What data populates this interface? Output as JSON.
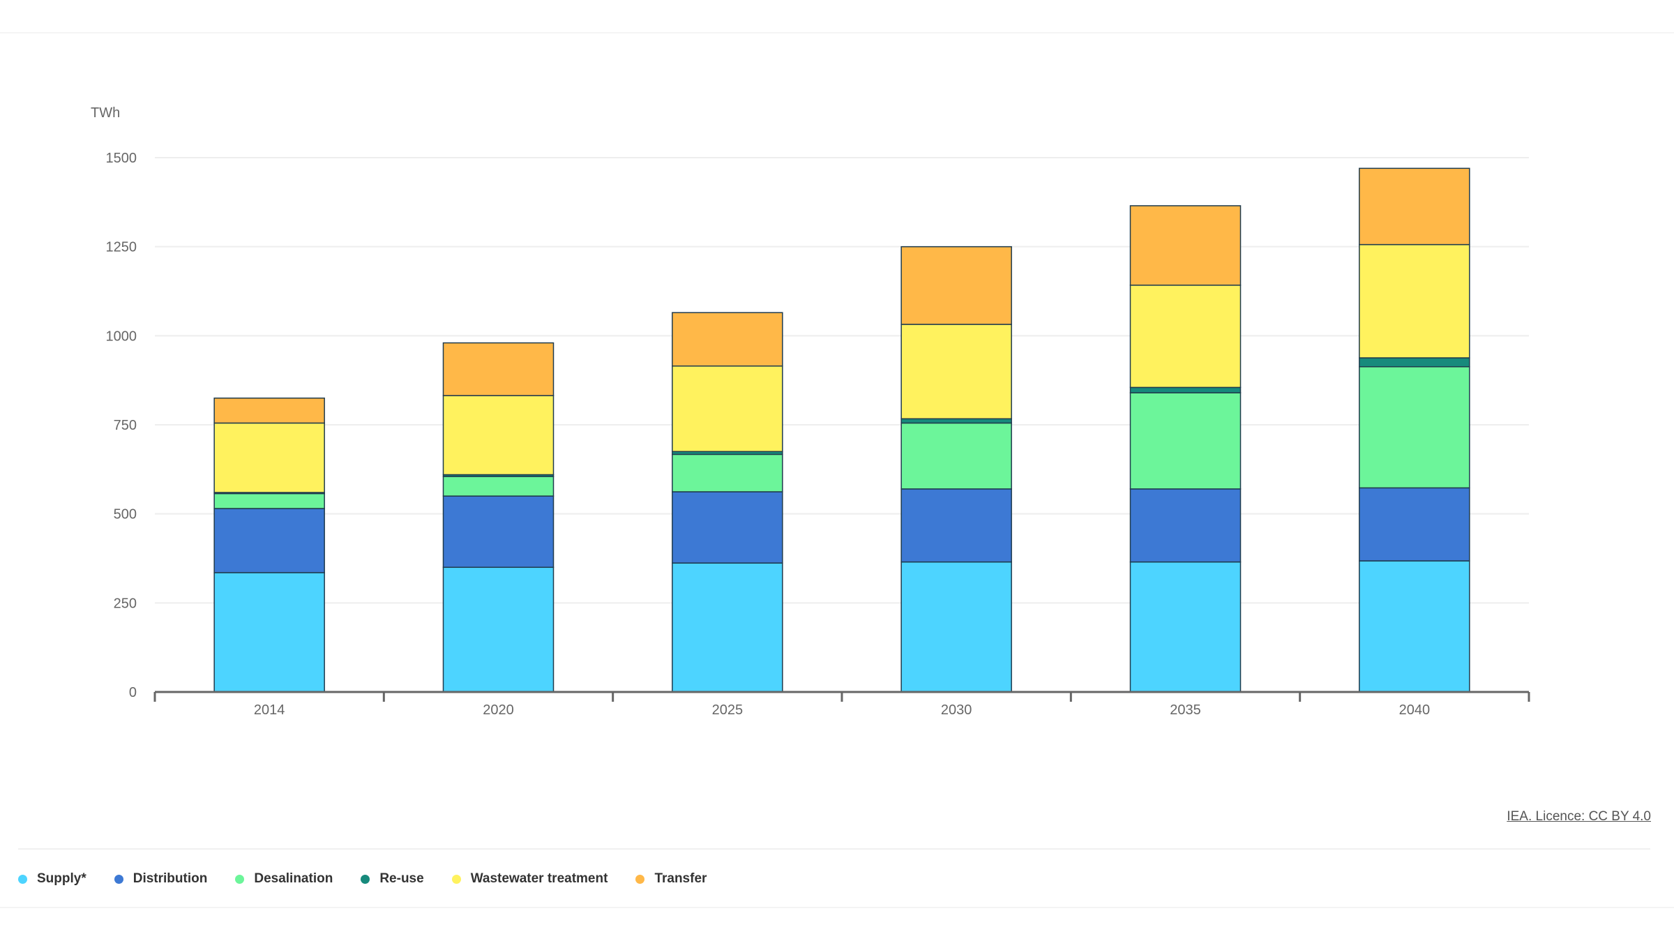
{
  "chart_data": {
    "type": "bar",
    "stacked": true,
    "ylabel": "TWh",
    "ylim": [
      0,
      1500
    ],
    "yticks": [
      0,
      250,
      500,
      750,
      1000,
      1250,
      1500
    ],
    "grid": true,
    "legend_position": "bottom-left",
    "categories": [
      "2014",
      "2020",
      "2025",
      "2030",
      "2035",
      "2040"
    ],
    "series": [
      {
        "name": "Supply*",
        "color": "#4dd4ff",
        "values": [
          335,
          350,
          362,
          365,
          365,
          368
        ]
      },
      {
        "name": "Distribution",
        "color": "#3d79d4",
        "values": [
          180,
          200,
          200,
          205,
          205,
          205
        ]
      },
      {
        "name": "Desalination",
        "color": "#6cf59a",
        "values": [
          42,
          55,
          105,
          185,
          270,
          340
        ]
      },
      {
        "name": "Re-use",
        "color": "#178a7c",
        "values": [
          3,
          5,
          8,
          12,
          15,
          25
        ]
      },
      {
        "name": "Wastewater treatment",
        "color": "#fff25e",
        "values": [
          195,
          222,
          240,
          265,
          287,
          318
        ]
      },
      {
        "name": "Transfer",
        "color": "#ffb848",
        "values": [
          70,
          148,
          150,
          218,
          223,
          214
        ]
      }
    ]
  },
  "source": {
    "text": "IEA. Licence: CC BY 4.0"
  }
}
